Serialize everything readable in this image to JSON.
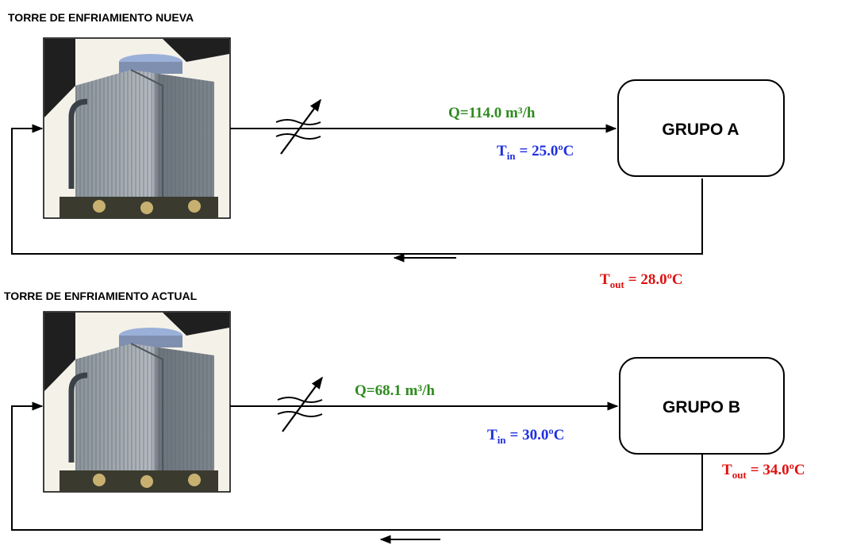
{
  "sections": [
    {
      "title": "TORRE DE ENFRIAMIENTO NUEVA",
      "flow": "Q=114.0 m³/h",
      "group": "GRUPO A",
      "t_in": {
        "symbol": "T",
        "subscript": "in",
        "value": "= 25.0ºC"
      },
      "t_out": {
        "symbol": "T",
        "subscript": "out",
        "value": "= 28.0ºC"
      }
    },
    {
      "title": "TORRE DE ENFRIAMIENTO ACTUAL",
      "flow": "Q=68.1 m³/h",
      "group": "GRUPO B",
      "t_in": {
        "symbol": "T",
        "subscript": "in",
        "value": "= 30.0ºC"
      },
      "t_out": {
        "symbol": "T",
        "subscript": "out",
        "value": "= 34.0ºC"
      }
    }
  ]
}
